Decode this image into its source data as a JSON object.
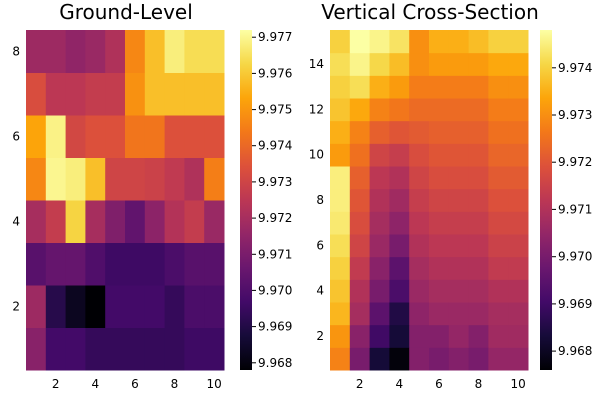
{
  "chart_data": [
    {
      "type": "heatmap",
      "title": "Ground-Level",
      "colormap": "inferno",
      "x": [
        1,
        2,
        3,
        4,
        5,
        6,
        7,
        8,
        9,
        10
      ],
      "y": [
        1,
        2,
        3,
        4,
        5,
        6,
        7,
        8
      ],
      "xticks": [
        2,
        4,
        6,
        8,
        10
      ],
      "yticks": [
        2,
        4,
        6,
        8
      ],
      "xlim": [
        0.5,
        10.5
      ],
      "ylim": [
        0.5,
        8.5
      ],
      "clim": [
        9.9678,
        9.9772
      ],
      "colorbar_ticks": [
        "9.968",
        "9.969",
        "9.970",
        "9.971",
        "9.972",
        "9.973",
        "9.974",
        "9.975",
        "9.976",
        "9.977"
      ],
      "z": [
        [
          9.9713,
          9.9697,
          9.9697,
          9.9694,
          9.9694,
          9.9694,
          9.9694,
          9.9694,
          9.9696,
          9.9696
        ],
        [
          9.9718,
          9.9691,
          9.9683,
          9.9678,
          9.9697,
          9.9697,
          9.9697,
          9.9694,
          9.9699,
          9.9699
        ],
        [
          9.9702,
          9.9705,
          9.9705,
          9.97,
          9.9696,
          9.9696,
          9.9696,
          9.9699,
          9.9702,
          9.9702
        ],
        [
          9.972,
          9.9727,
          9.9762,
          9.972,
          9.9711,
          9.9704,
          9.9714,
          9.9723,
          9.9727,
          9.9717
        ],
        [
          9.9747,
          9.977,
          9.9768,
          9.9758,
          9.973,
          9.973,
          9.9729,
          9.9726,
          9.9722,
          9.9745
        ],
        [
          9.9753,
          9.9769,
          9.9731,
          9.9734,
          9.9734,
          9.9743,
          9.9743,
          9.9734,
          9.9734,
          9.9734
        ],
        [
          9.9733,
          9.9725,
          9.9725,
          9.9727,
          9.9727,
          9.9749,
          9.9758,
          9.9758,
          9.9758,
          9.9758
        ],
        [
          9.9718,
          9.9718,
          9.9715,
          9.9717,
          9.9722,
          9.9747,
          9.9758,
          9.9768,
          9.9764,
          9.9764
        ]
      ]
    },
    {
      "type": "heatmap",
      "title": "Vertical Cross-Section",
      "colormap": "inferno",
      "x": [
        1,
        2,
        3,
        4,
        5,
        6,
        7,
        8,
        9,
        10
      ],
      "y": [
        1,
        2,
        3,
        4,
        5,
        6,
        7,
        8,
        9,
        10,
        11,
        12,
        13,
        14,
        15
      ],
      "xticks": [
        2,
        4,
        6,
        8,
        10
      ],
      "yticks": [
        2,
        4,
        6,
        8,
        10,
        12,
        14
      ],
      "xlim": [
        0.5,
        10.5
      ],
      "ylim": [
        0.5,
        15.5
      ],
      "clim": [
        9.9676,
        9.9748
      ],
      "colorbar_ticks": [
        "9.968",
        "9.969",
        "9.970",
        "9.971",
        "9.972",
        "9.973",
        "9.974"
      ],
      "z": [
        [
          9.9728,
          9.97,
          9.9683,
          9.9677,
          9.9702,
          9.97,
          9.9702,
          9.97,
          9.9705,
          9.9705
        ],
        [
          9.9731,
          9.9703,
          9.969,
          9.9683,
          9.9702,
          9.9702,
          9.9705,
          9.9702,
          9.9707,
          9.9707
        ],
        [
          9.9736,
          9.9708,
          9.9695,
          9.9685,
          9.9704,
          9.9706,
          9.9706,
          9.9706,
          9.9708,
          9.9708
        ],
        [
          9.9738,
          9.971,
          9.97,
          9.9692,
          9.9706,
          9.9708,
          9.9708,
          9.9708,
          9.971,
          9.971
        ],
        [
          9.974,
          9.9713,
          9.9703,
          9.9695,
          9.9708,
          9.971,
          9.971,
          9.971,
          9.9713,
          9.9713
        ],
        [
          9.9742,
          9.9716,
          9.9706,
          9.97,
          9.971,
          9.9712,
          9.9712,
          9.9712,
          9.9715,
          9.9715
        ],
        [
          9.9744,
          9.9718,
          9.9708,
          9.9704,
          9.9712,
          9.9714,
          9.9714,
          9.9714,
          9.9717,
          9.9717
        ],
        [
          9.9745,
          9.972,
          9.971,
          9.9707,
          9.9714,
          9.9716,
          9.9716,
          9.9716,
          9.9719,
          9.9719
        ],
        [
          9.9745,
          9.9722,
          9.9712,
          9.971,
          9.9716,
          9.9718,
          9.9718,
          9.9718,
          9.9721,
          9.9721
        ],
        [
          9.9732,
          9.9725,
          9.9716,
          9.9714,
          9.9718,
          9.972,
          9.972,
          9.972,
          9.9723,
          9.9723
        ],
        [
          9.9735,
          9.9728,
          9.9722,
          9.972,
          9.9721,
          9.9722,
          9.9722,
          9.9722,
          9.9725,
          9.9725
        ],
        [
          9.9738,
          9.9734,
          9.9728,
          9.9726,
          9.9724,
          9.9724,
          9.9724,
          9.9724,
          9.9727,
          9.9727
        ],
        [
          9.974,
          9.9742,
          9.9735,
          9.9732,
          9.9727,
          9.9727,
          9.9727,
          9.9727,
          9.973,
          9.973
        ],
        [
          9.9742,
          9.9746,
          9.9741,
          9.9737,
          9.973,
          9.9732,
          9.9732,
          9.9732,
          9.9734,
          9.9734
        ],
        [
          9.974,
          9.9748,
          9.9746,
          9.9743,
          9.973,
          9.9735,
          9.9735,
          9.9737,
          9.974,
          9.974
        ]
      ]
    }
  ]
}
